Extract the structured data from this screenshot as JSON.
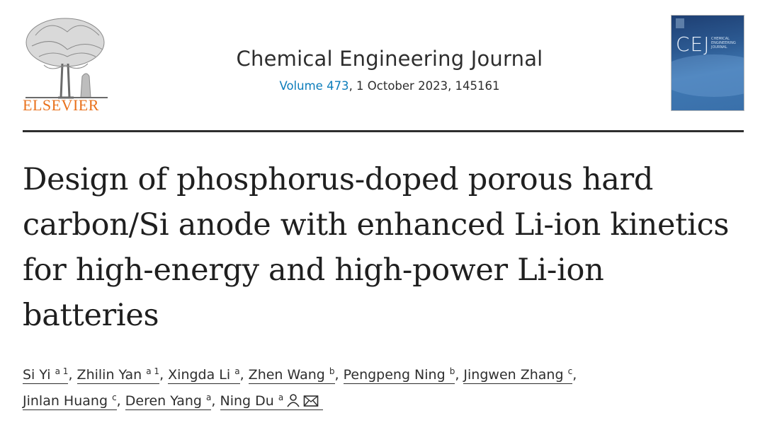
{
  "publisher": {
    "name": "ELSEVIER"
  },
  "journal": {
    "title": "Chemical Engineering Journal",
    "volume_link": "Volume 473",
    "issue_rest": ", 1 October 2023, 145161",
    "cover_text": "CEJ",
    "cover_subtitle": "CHEMICAL ENGINEERING JOURNAL"
  },
  "article": {
    "title": "Design of phosphorus-doped porous hard carbon/Si anode with enhanced Li-ion kinetics for high-energy and high-power Li-ion batteries"
  },
  "authors": [
    {
      "name": "Si Yi",
      "sup": "a 1"
    },
    {
      "name": "Zhilin Yan",
      "sup": "a 1"
    },
    {
      "name": "Xingda Li",
      "sup": "a"
    },
    {
      "name": "Zhen Wang",
      "sup": "b"
    },
    {
      "name": "Pengpeng Ning",
      "sup": "b"
    },
    {
      "name": "Jingwen Zhang",
      "sup": "c"
    },
    {
      "name": "Jinlan Huang",
      "sup": "c"
    },
    {
      "name": "Deren Yang",
      "sup": "a"
    },
    {
      "name": "Ning Du",
      "sup": "a",
      "icons": [
        "person-icon",
        "envelope-icon"
      ]
    }
  ],
  "separator": ", ",
  "colors": {
    "link": "#0c7dbb",
    "publisher": "#e9711c",
    "text": "#2e2e2e"
  }
}
